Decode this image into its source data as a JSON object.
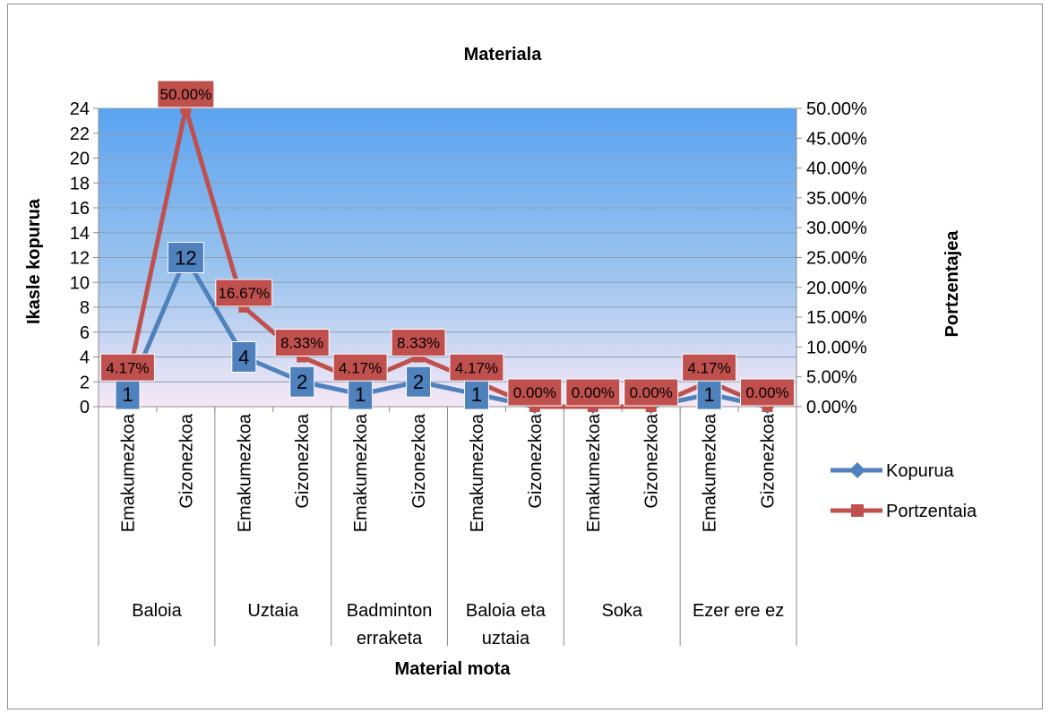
{
  "chart_data": {
    "type": "line",
    "title": "Materiala",
    "xlabel": "Material mota",
    "ylabel": "Ikasle kopurua",
    "y2label": "Portzentajea",
    "ylim": [
      0,
      24
    ],
    "y2lim": [
      0,
      50
    ],
    "yticks": [
      "0",
      "2",
      "4",
      "6",
      "8",
      "10",
      "12",
      "14",
      "16",
      "18",
      "20",
      "22",
      "24"
    ],
    "y2ticks": [
      "0.00%",
      "5.00%",
      "10.00%",
      "15.00%",
      "20.00%",
      "25.00%",
      "30.00%",
      "35.00%",
      "40.00%",
      "45.00%",
      "50.00%"
    ],
    "groups": [
      "Baloia",
      "Uztaia",
      "Badminton erraketa",
      "Baloia eta uztaia",
      "Soka",
      "Ezer ere ez"
    ],
    "categories": [
      "Emakumezkoa",
      "Gizonezkoa",
      "Emakumezkoa",
      "Gizonezkoa",
      "Emakumezkoa",
      "Gizonezkoa",
      "Emakumezkoa",
      "Gizonezkoa",
      "Emakumezkoa",
      "Gizonezkoa",
      "Emakumezkoa",
      "Gizonezkoa"
    ],
    "series": [
      {
        "name": "Kopurua",
        "axis": "left",
        "color": "#4f81bd",
        "values": [
          1,
          12,
          4,
          2,
          1,
          2,
          1,
          0,
          0,
          0,
          1,
          0
        ],
        "labels": [
          "1",
          "12",
          "4",
          "2",
          "1",
          "2",
          "1",
          "",
          "",
          "",
          "1",
          ""
        ]
      },
      {
        "name": "Portzentaia",
        "axis": "right",
        "color": "#c0504d",
        "values": [
          4.17,
          50,
          16.67,
          8.33,
          4.17,
          8.33,
          4.17,
          0,
          0,
          0,
          4.17,
          0
        ],
        "labels": [
          "4.17%",
          "50.00%",
          "16.67%",
          "8.33%",
          "4.17%",
          "8.33%",
          "4.17%",
          "0.00%",
          "0.00%",
          "0.00%",
          "4.17%",
          "0.00%"
        ]
      }
    ],
    "legend_position": "right",
    "plot_background": "gradient blue to lavender"
  }
}
